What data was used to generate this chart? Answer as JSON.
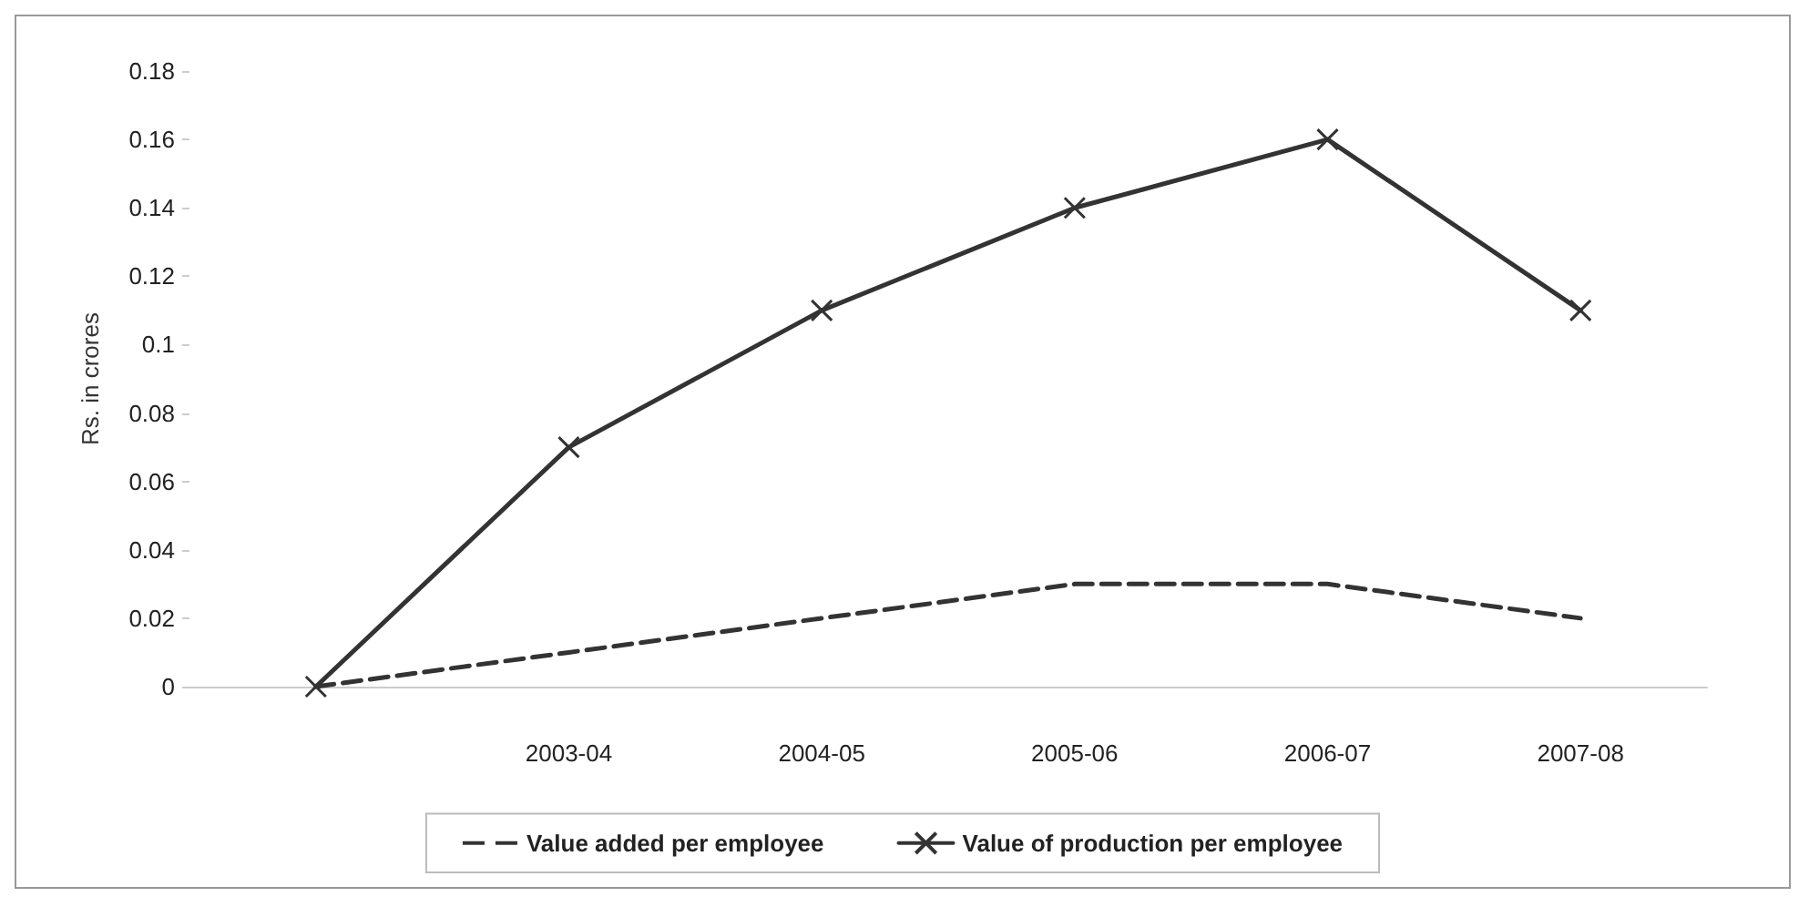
{
  "chart_data": {
    "type": "line",
    "ylabel": "Rs. in crores",
    "categories": [
      null,
      "2003-04",
      "2004-05",
      "2005-06",
      "2006-07",
      "2007-08"
    ],
    "series": [
      {
        "name": "Value added per employee",
        "color": "#333333",
        "values": [
          0,
          0.01,
          0.02,
          0.03,
          0.03,
          0.02
        ],
        "marker": "none",
        "line_style": "dashed"
      },
      {
        "name": "Value of production per employee",
        "color": "#333333",
        "values": [
          0,
          0.07,
          0.11,
          0.14,
          0.16,
          0.11
        ],
        "marker": "cross",
        "line_style": "solid"
      }
    ],
    "ylim": [
      0,
      0.18
    ],
    "yticks": [
      0,
      0.02,
      0.04,
      0.06,
      0.08,
      0.1,
      0.12,
      0.14,
      0.16,
      0.18
    ],
    "grid": false,
    "legend": "bottom"
  }
}
